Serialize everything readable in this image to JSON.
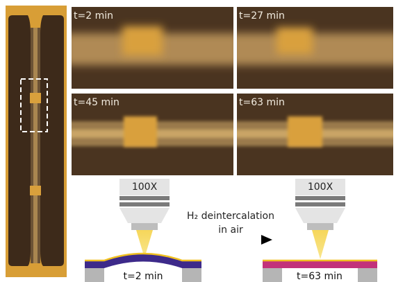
{
  "panels": [
    {
      "label": "t=2 min"
    },
    {
      "label": "t=27 min"
    },
    {
      "label": "t=45 min"
    },
    {
      "label": "t=63 min"
    }
  ],
  "schematic": {
    "left": {
      "objective": "100X",
      "label": "t=2 min"
    },
    "right": {
      "objective": "100X",
      "label": "t=63 min"
    },
    "arrow": {
      "lines": [
        "H₂ deintercalation",
        "in air"
      ]
    }
  }
}
